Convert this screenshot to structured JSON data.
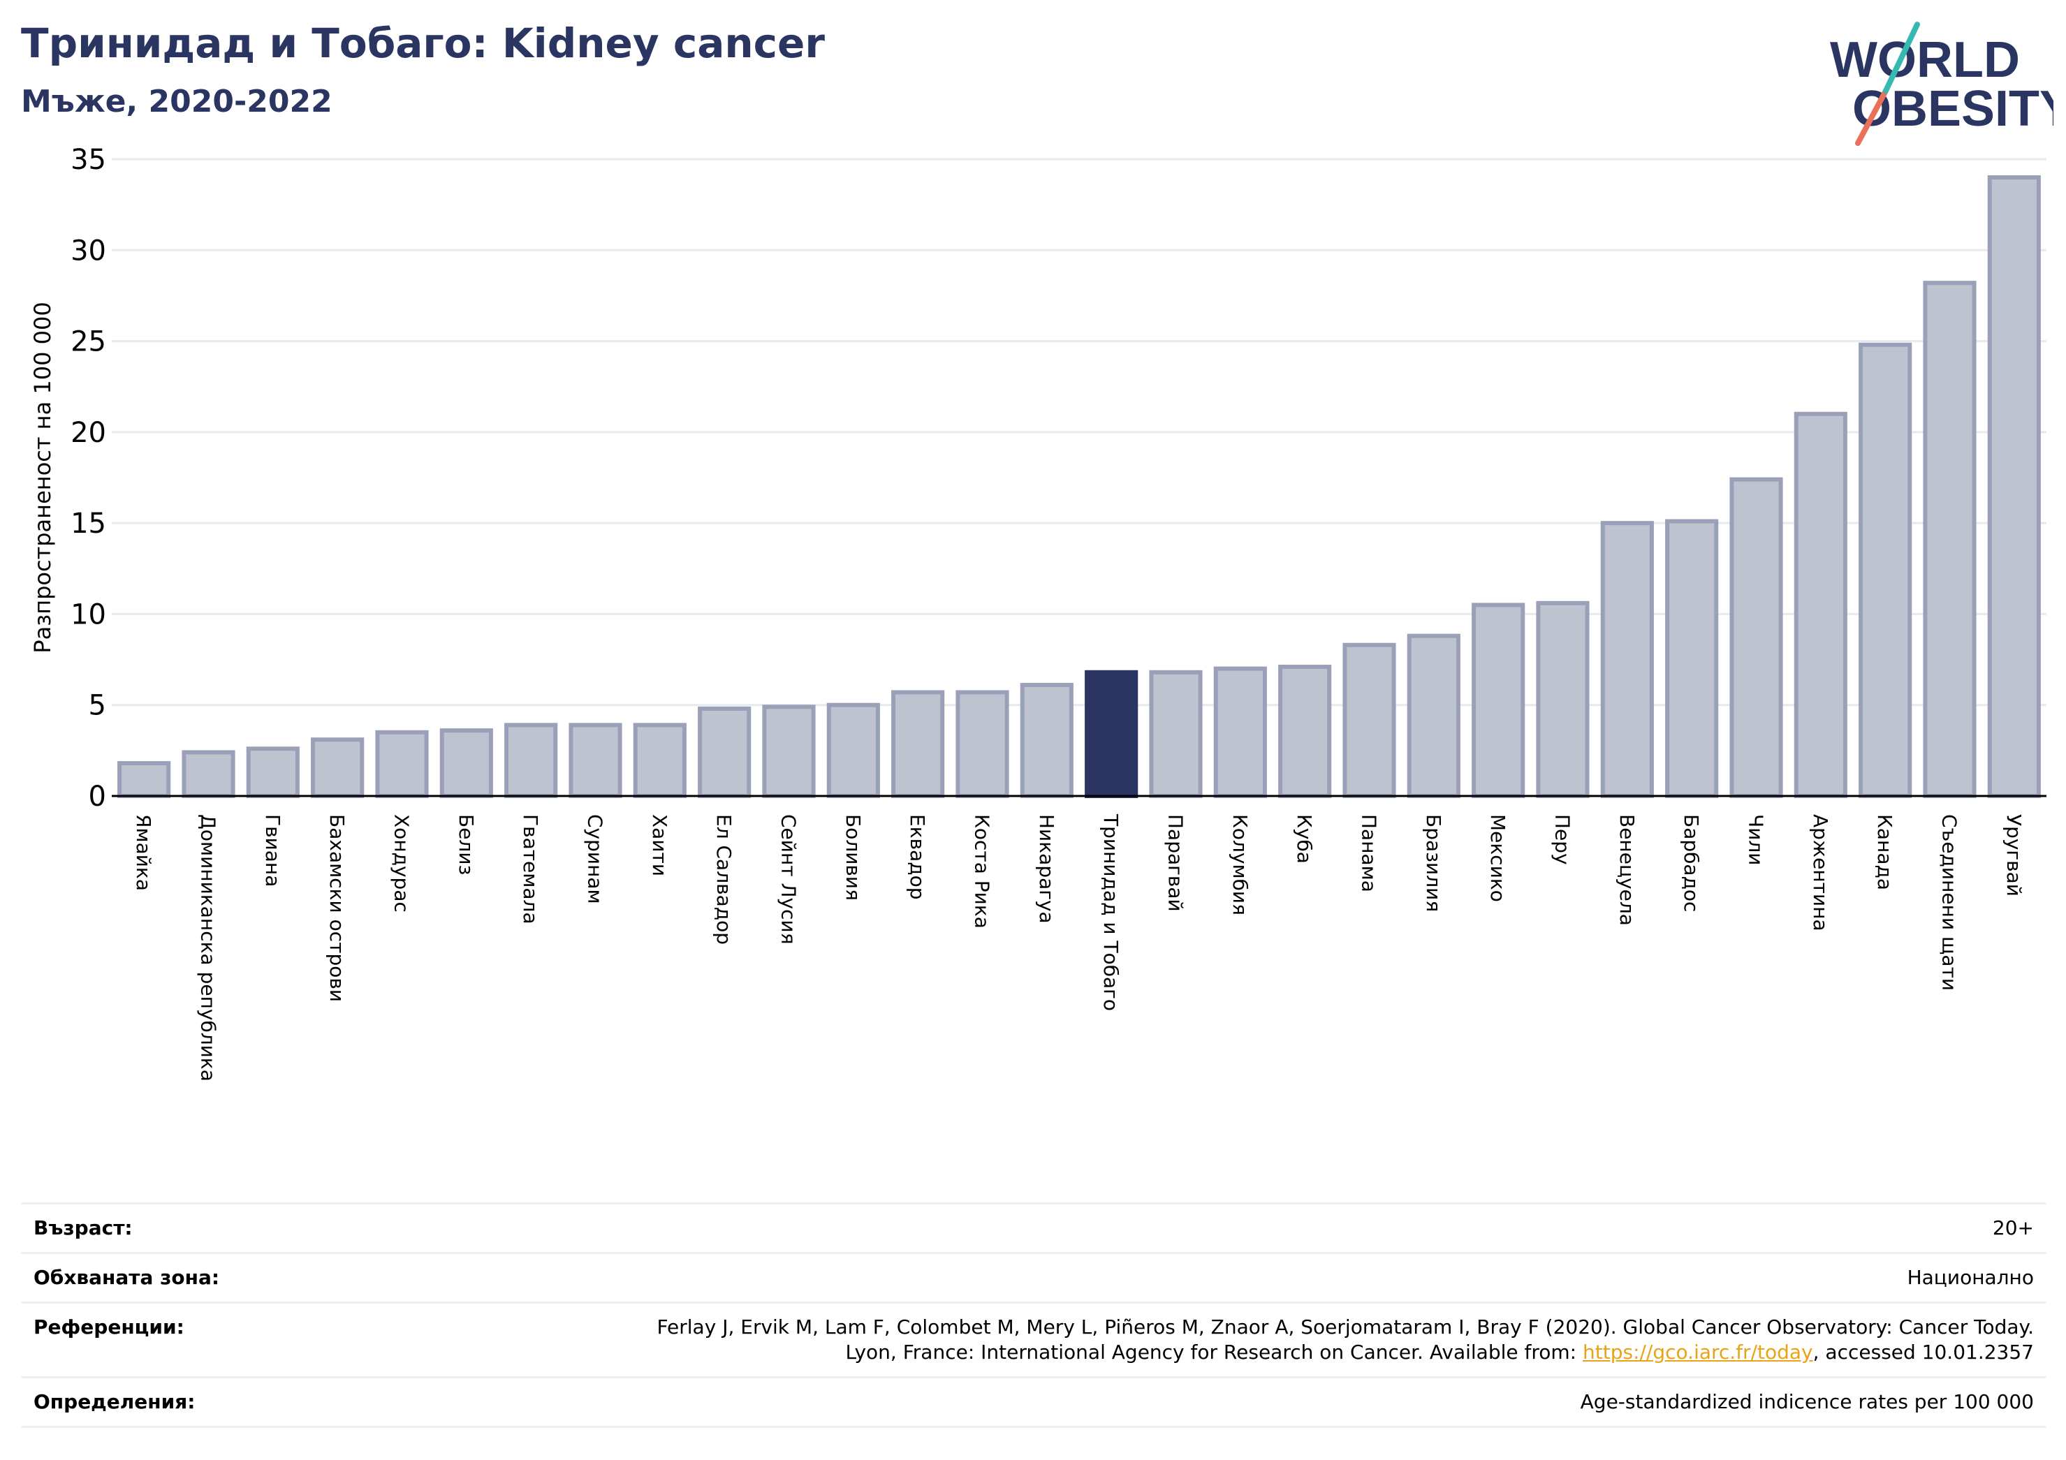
{
  "header": {
    "title": "Тринидад и Тобаго: Kidney cancer",
    "subtitle": "Мъже, 2020-2022"
  },
  "logo": {
    "line1": "WORLD",
    "line2": "OBESITY"
  },
  "colors": {
    "bar_default": "#bfc3d0",
    "bar_default_edge": "#9aa0b8",
    "bar_highlight": "#2b3562",
    "text_dark": "#2b3562",
    "logo_teal": "#36b8b3",
    "logo_coral": "#e8715a",
    "grid": "#e8e9ef"
  },
  "chart_data": {
    "type": "bar",
    "ylabel": "Разпространеност  на 100 000",
    "ylim": [
      0,
      35
    ],
    "yticks": [
      0,
      5,
      10,
      15,
      20,
      25,
      30,
      35
    ],
    "grid": "horizontal",
    "highlight": "Тринидад и Тобаго",
    "categories": [
      "Ямайка",
      "Доминиканска република",
      "Гвиана",
      "Бахамски острови",
      "Хондурас",
      "Белиз",
      "Гватемала",
      "Суринам",
      "Хаити",
      "Ел Салвадор",
      "Сейнт Лусия",
      "Боливия",
      "Еквадор",
      "Коста Рика",
      "Никарагуа",
      "Тринидад и Тобаго",
      "Парагвай",
      "Колумбия",
      "Куба",
      "Панама",
      "Бразилия",
      "Мексико",
      "Перу",
      "Венецуела",
      "Барбадос",
      "Чили",
      "Аржентина",
      "Канада",
      "Съединени щати",
      "Уругвай"
    ],
    "values": [
      1.8,
      2.4,
      2.6,
      3.1,
      3.5,
      3.6,
      3.9,
      3.9,
      3.9,
      4.8,
      4.9,
      5.0,
      5.7,
      5.7,
      6.1,
      6.8,
      6.8,
      7.0,
      7.1,
      8.3,
      8.8,
      10.5,
      10.6,
      15.0,
      15.1,
      17.4,
      21.0,
      24.8,
      28.2,
      34.0
    ]
  },
  "meta": {
    "age_label": "Възраст:",
    "age_value": "20+",
    "coverage_label": "Обхваната зона:",
    "coverage_value": "Национално",
    "references_label": "Референции:",
    "references_line1": "Ferlay J, Ervik M, Lam F, Colombet M, Mery L, Piñeros M, Znaor A, Soerjomataram I, Bray F (2020). Global Cancer Observatory: Cancer Today.",
    "references_line2_pre": "Lyon, France: International Agency for Research on Cancer. Available from: ",
    "references_link": "https://gco.iarc.fr/today",
    "references_line2_post": ", accessed 10.01.2357",
    "definitions_label": "Определения:",
    "definitions_value": "Age-standardized indicence rates per 100 000"
  }
}
